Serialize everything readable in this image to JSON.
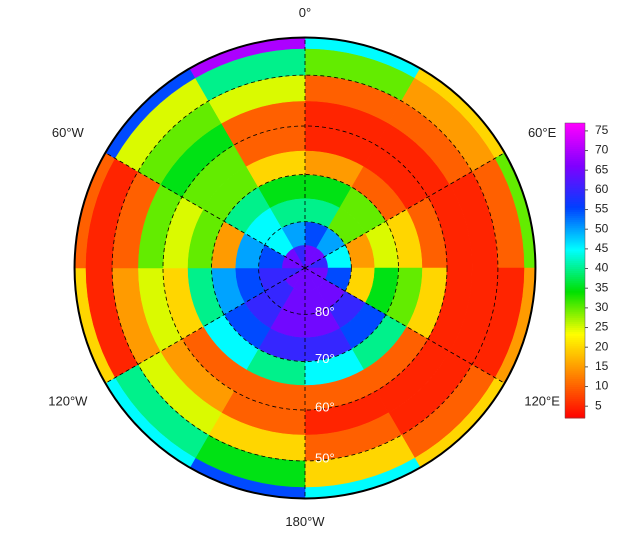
{
  "chart_data": {
    "type": "polar_heatmap",
    "lon_labels": [
      {
        "value": 0,
        "label": "0°"
      },
      {
        "value": 60,
        "label": "60°E"
      },
      {
        "value": 120,
        "label": "120°E"
      },
      {
        "value": 180,
        "label": "180°W"
      },
      {
        "value": -120,
        "label": "120°W"
      },
      {
        "value": -60,
        "label": "60°W"
      }
    ],
    "lat_labels": [
      {
        "value": 80,
        "label": "80°"
      },
      {
        "value": 70,
        "label": "70°"
      },
      {
        "value": 60,
        "label": "60°"
      },
      {
        "value": 50,
        "label": "50°"
      }
    ],
    "lat_edges": [
      90,
      85,
      80,
      75,
      70,
      65,
      60,
      55,
      50,
      45,
      43
    ],
    "lon_edges": [
      0,
      30,
      60,
      90,
      120,
      150,
      180,
      210,
      240,
      270,
      300,
      330,
      360
    ],
    "values": [
      [
        65,
        65,
        60,
        65,
        65,
        65,
        65,
        65,
        60,
        65,
        65,
        60
      ],
      [
        55,
        50,
        45,
        55,
        65,
        65,
        65,
        60,
        60,
        55,
        45,
        50
      ],
      [
        40,
        30,
        15,
        20,
        60,
        65,
        65,
        60,
        55,
        50,
        45,
        40
      ],
      [
        35,
        30,
        25,
        35,
        55,
        60,
        60,
        55,
        50,
        15,
        40,
        35
      ],
      [
        15,
        10,
        20,
        30,
        40,
        45,
        40,
        45,
        40,
        30,
        30,
        20
      ],
      [
        5,
        5,
        10,
        20,
        10,
        10,
        10,
        10,
        20,
        25,
        30,
        10
      ],
      [
        5,
        5,
        5,
        5,
        5,
        5,
        10,
        15,
        25,
        30,
        35,
        10
      ],
      [
        10,
        10,
        5,
        5,
        5,
        10,
        20,
        25,
        15,
        10,
        30,
        25
      ],
      [
        30,
        15,
        10,
        5,
        10,
        20,
        35,
        40,
        5,
        5,
        25,
        40
      ],
      [
        45,
        20,
        30,
        15,
        20,
        45,
        55,
        45,
        20,
        10,
        55,
        70
      ]
    ],
    "colorbar": {
      "ylim": [
        2,
        77
      ],
      "yticks": [
        5,
        10,
        15,
        20,
        25,
        30,
        35,
        40,
        45,
        50,
        55,
        60,
        65,
        70,
        75
      ],
      "colors": [
        "#ff0000",
        "#ff8000",
        "#ffff00",
        "#00e000",
        "#00ffff",
        "#0040ff",
        "#8000ff",
        "#ff00ff"
      ]
    }
  }
}
